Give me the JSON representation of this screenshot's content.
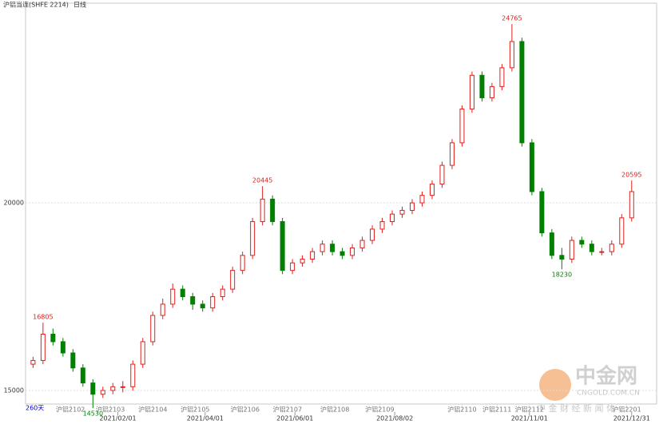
{
  "chart_data": {
    "type": "candlestick",
    "title": "沪铝当连(SHFE 2214)",
    "period": "日线",
    "span_label": "260天",
    "watermark": "中金网",
    "watermark_sub": "CNGOLD.COM.CN",
    "footer_text": "中 金 财 经 新 闻 体",
    "up_color": "#e0201c",
    "down_color": "#008000",
    "xlim": [
      -3,
      250
    ],
    "ylim": [
      14766,
      25300
    ],
    "yticks": [
      15000,
      20000
    ],
    "grid": true,
    "xticks": [
      {
        "value": 34,
        "label": "2021/02/01"
      },
      {
        "value": 69,
        "label": "2021/04/01"
      },
      {
        "value": 105,
        "label": "2021/06/01"
      },
      {
        "value": 145,
        "label": "2021/08/02"
      },
      {
        "value": 199,
        "label": "2021/11/01"
      },
      {
        "value": 240,
        "label": "2021/12/31"
      }
    ],
    "contract_ticks": [
      {
        "value": 15,
        "label": "沪铝2102"
      },
      {
        "value": 31,
        "label": "沪铝2103"
      },
      {
        "value": 48,
        "label": "沪铝2104"
      },
      {
        "value": 65,
        "label": "沪铝2105"
      },
      {
        "value": 85,
        "label": "沪铝2106"
      },
      {
        "value": 102,
        "label": "沪铝2107"
      },
      {
        "value": 121,
        "label": "沪铝2108"
      },
      {
        "value": 139,
        "label": "沪铝2109"
      },
      {
        "value": 172,
        "label": "沪铝2110"
      },
      {
        "value": 186,
        "label": "沪铝2111"
      },
      {
        "value": 199,
        "label": "沪铝2112"
      },
      {
        "value": 238,
        "label": "沪铝2201"
      }
    ],
    "x": [
      0,
      4,
      8,
      12,
      16,
      20,
      24,
      28,
      32,
      36,
      40,
      44,
      48,
      52,
      56,
      60,
      64,
      68,
      72,
      76,
      80,
      84,
      88,
      92,
      96,
      100,
      104,
      108,
      112,
      116,
      120,
      124,
      128,
      132,
      136,
      140,
      144,
      148,
      152,
      156,
      160,
      164,
      168,
      172,
      176,
      180,
      184,
      188,
      192,
      196,
      200,
      204,
      208,
      212,
      216,
      220,
      224,
      228,
      232,
      236,
      240
    ],
    "ohlc": [
      [
        15700,
        15900,
        15600,
        15800
      ],
      [
        15800,
        16805,
        15700,
        16500
      ],
      [
        16500,
        16650,
        16200,
        16300
      ],
      [
        16300,
        16400,
        15900,
        16000
      ],
      [
        16000,
        16100,
        15500,
        15600
      ],
      [
        15600,
        15700,
        15100,
        15200
      ],
      [
        15200,
        15300,
        14530,
        14900
      ],
      [
        14900,
        15100,
        14800,
        15000
      ],
      [
        15000,
        15200,
        14900,
        15100
      ],
      [
        15100,
        15250,
        14950,
        15100
      ],
      [
        15100,
        15800,
        15000,
        15700
      ],
      [
        15700,
        16400,
        15600,
        16300
      ],
      [
        16300,
        17100,
        16200,
        17000
      ],
      [
        17000,
        17450,
        16900,
        17300
      ],
      [
        17300,
        17850,
        17200,
        17700
      ],
      [
        17700,
        17800,
        17400,
        17500
      ],
      [
        17500,
        17600,
        17150,
        17300
      ],
      [
        17300,
        17400,
        17100,
        17200
      ],
      [
        17200,
        17600,
        17100,
        17500
      ],
      [
        17500,
        17800,
        17400,
        17700
      ],
      [
        17700,
        18300,
        17600,
        18200
      ],
      [
        18200,
        18700,
        18100,
        18600
      ],
      [
        18600,
        19600,
        18500,
        19500
      ],
      [
        19500,
        20445,
        19400,
        20100
      ],
      [
        20100,
        20200,
        19400,
        19500
      ],
      [
        19500,
        19600,
        18100,
        18200
      ],
      [
        18200,
        18500,
        18100,
        18400
      ],
      [
        18400,
        18600,
        18300,
        18500
      ],
      [
        18500,
        18800,
        18400,
        18700
      ],
      [
        18700,
        19000,
        18600,
        18900
      ],
      [
        18900,
        19000,
        18600,
        18700
      ],
      [
        18700,
        18800,
        18500,
        18600
      ],
      [
        18600,
        18900,
        18500,
        18800
      ],
      [
        18800,
        19100,
        18700,
        19000
      ],
      [
        19000,
        19400,
        18900,
        19300
      ],
      [
        19300,
        19600,
        19200,
        19500
      ],
      [
        19500,
        19800,
        19400,
        19700
      ],
      [
        19700,
        19900,
        19600,
        19800
      ],
      [
        19800,
        20100,
        19700,
        20000
      ],
      [
        20000,
        20300,
        19900,
        20200
      ],
      [
        20200,
        20600,
        20100,
        20500
      ],
      [
        20500,
        21100,
        20400,
        21000
      ],
      [
        21000,
        21700,
        20900,
        21600
      ],
      [
        21600,
        22600,
        21500,
        22500
      ],
      [
        22500,
        23500,
        22400,
        23400
      ],
      [
        23400,
        23500,
        22700,
        22800
      ],
      [
        22800,
        23200,
        22700,
        23100
      ],
      [
        23100,
        23700,
        23000,
        23600
      ],
      [
        23600,
        24765,
        23500,
        24300
      ],
      [
        24300,
        24400,
        21500,
        21600
      ],
      [
        21600,
        21700,
        20200,
        20300
      ],
      [
        20300,
        20400,
        19100,
        19200
      ],
      [
        19200,
        19300,
        18500,
        18600
      ],
      [
        18600,
        18800,
        18230,
        18500
      ],
      [
        18500,
        19100,
        18400,
        19000
      ],
      [
        19000,
        19100,
        18800,
        18900
      ],
      [
        18900,
        19000,
        18600,
        18700
      ],
      [
        18700,
        18800,
        18600,
        18700
      ],
      [
        18700,
        19000,
        18600,
        18900
      ],
      [
        18900,
        19700,
        18800,
        19600
      ],
      [
        19600,
        20595,
        19500,
        20300
      ]
    ]
  }
}
